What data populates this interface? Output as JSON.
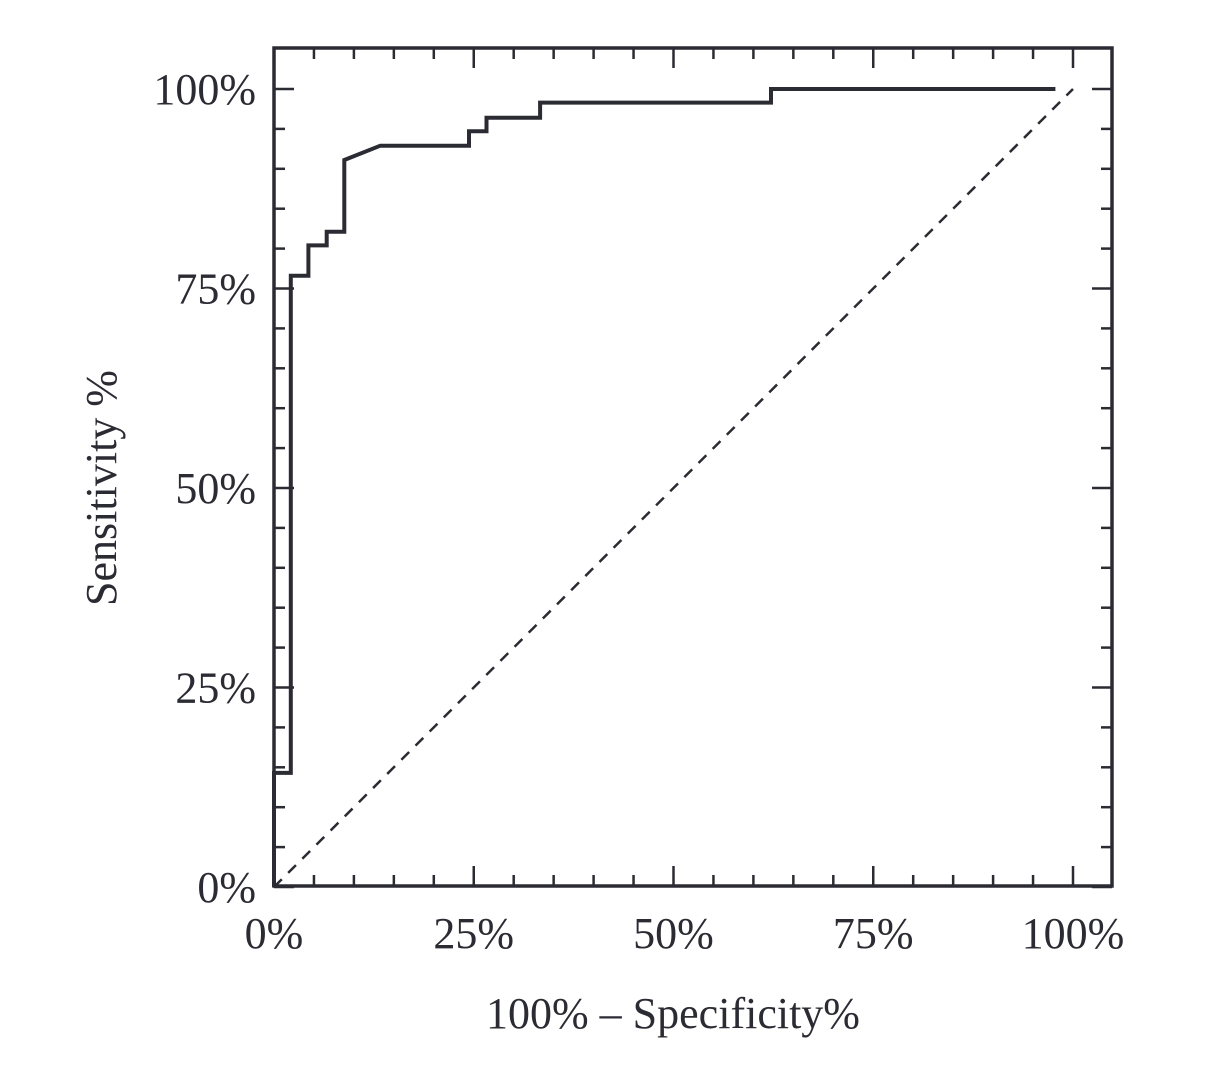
{
  "chart_data": {
    "type": "line",
    "title": "",
    "xlabel": "100% – Specificity%",
    "ylabel": "Sensitivity %",
    "xlim": [
      0,
      100
    ],
    "ylim": [
      0,
      100
    ],
    "xticks": [
      0,
      25,
      50,
      75,
      100
    ],
    "yticks": [
      0,
      25,
      50,
      75,
      100
    ],
    "xtick_labels": [
      "0%",
      "25%",
      "50%",
      "75%",
      "100%"
    ],
    "ytick_labels": [
      "0%",
      "25%",
      "50%",
      "75%",
      "100%"
    ],
    "grid": false,
    "legend": "none",
    "series": [
      {
        "style": "solid",
        "color": "#2b2b33",
        "x": [
          0,
          0,
          2.1,
          2.1,
          4.3,
          4.3,
          6.6,
          6.6,
          8.8,
          8.8,
          13.3,
          24.4,
          24.4,
          26.6,
          26.6,
          33.3,
          33.3,
          62.2,
          62.2,
          97.8
        ],
        "y": [
          0,
          14.3,
          14.3,
          76.6,
          76.6,
          80.4,
          80.4,
          82.1,
          82.1,
          91.1,
          92.9,
          92.9,
          94.7,
          94.7,
          96.4,
          96.4,
          98.3,
          98.3,
          100,
          100
        ]
      },
      {
        "style": "dashed",
        "color": "#2b2b33",
        "x": [
          0,
          100
        ],
        "y": [
          0,
          100
        ]
      }
    ]
  }
}
